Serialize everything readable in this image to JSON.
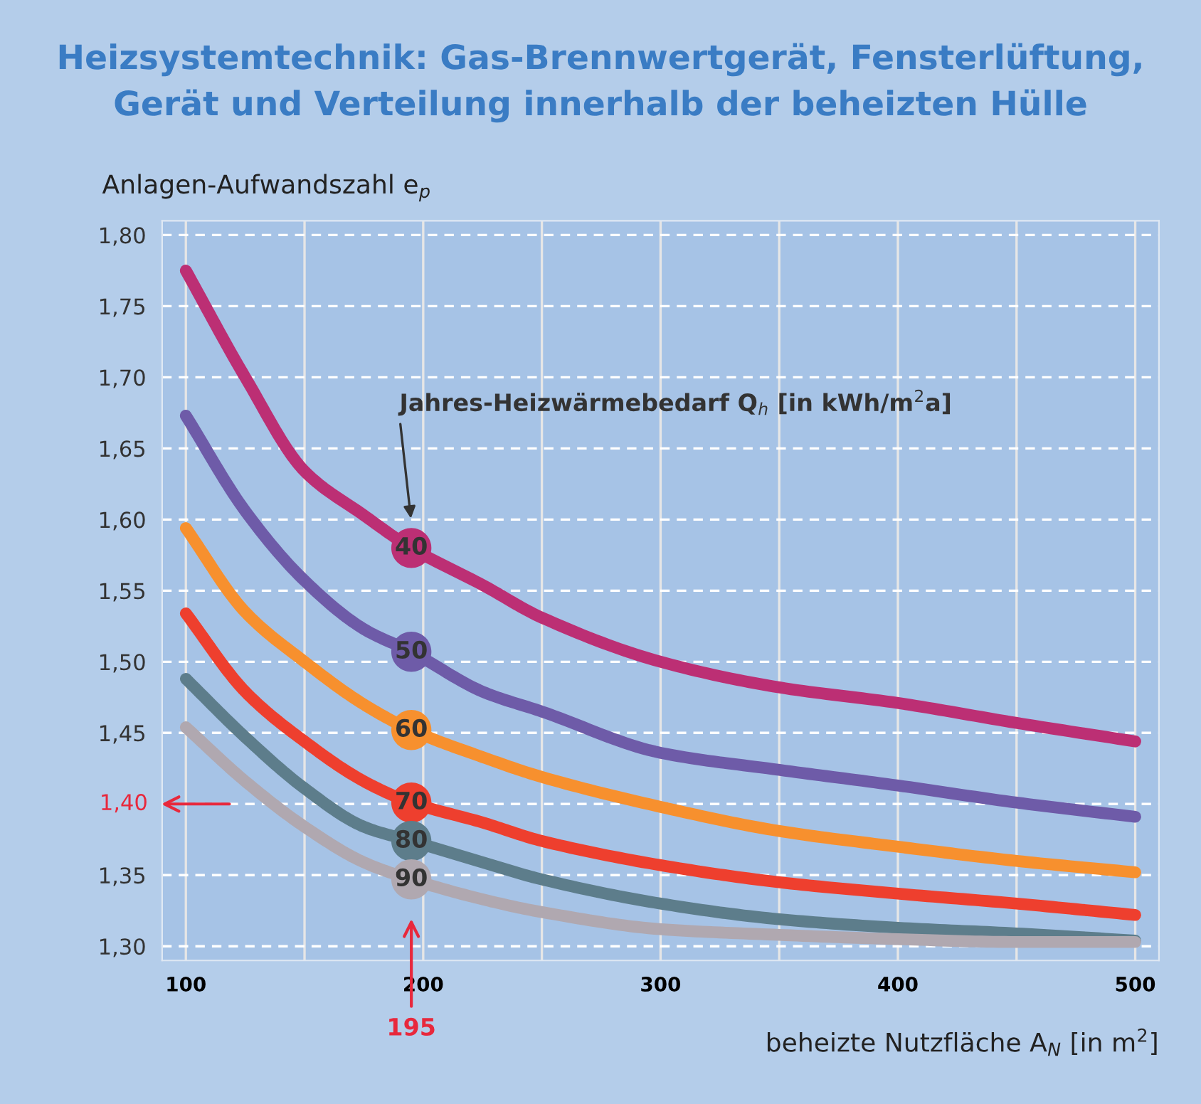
{
  "chart_data": {
    "type": "line",
    "title": "Heizsystemtechnik: Gas-Brennwertgerät, Fensterlüftung,\nGerät und Verteilung innerhalb der beheizten Hülle",
    "ylabel": "Anlagen-Aufwandszahl e$_{p}$",
    "xlabel": "beheizte Nutzfläche A$_{N}$ [in m$^{2}$]",
    "legend_title": "Jahres-Heizwärmebedarf Q$_{h}$ [in kWh/m$^{2}$a]",
    "x": [
      100,
      125,
      150,
      175,
      195,
      225,
      250,
      300,
      350,
      400,
      450,
      500
    ],
    "series": [
      {
        "name": "40",
        "color": "#bc2f74",
        "values": [
          1.775,
          1.7,
          1.634,
          1.603,
          1.58,
          1.554,
          1.531,
          1.5,
          1.482,
          1.471,
          1.457,
          1.444
        ]
      },
      {
        "name": "50",
        "color": "#6e5ba8",
        "values": [
          1.673,
          1.606,
          1.557,
          1.523,
          1.507,
          1.479,
          1.465,
          1.436,
          1.424,
          1.413,
          1.401,
          1.391
        ]
      },
      {
        "name": "60",
        "color": "#f7902e",
        "values": [
          1.594,
          1.535,
          1.5,
          1.47,
          1.452,
          1.433,
          1.419,
          1.398,
          1.381,
          1.37,
          1.36,
          1.352
        ]
      },
      {
        "name": "70",
        "color": "#ee3f2e",
        "values": [
          1.534,
          1.479,
          1.444,
          1.416,
          1.401,
          1.387,
          1.374,
          1.357,
          1.345,
          1.337,
          1.33,
          1.322
        ]
      },
      {
        "name": "80",
        "color": "#5d7d8b",
        "values": [
          1.488,
          1.447,
          1.411,
          1.384,
          1.374,
          1.359,
          1.347,
          1.33,
          1.319,
          1.313,
          1.309,
          1.304
        ]
      },
      {
        "name": "90",
        "color": "#b0a8b0",
        "values": [
          1.454,
          1.416,
          1.384,
          1.359,
          1.347,
          1.333,
          1.324,
          1.312,
          1.308,
          1.305,
          1.303,
          1.303
        ]
      }
    ],
    "xlim": [
      90,
      510
    ],
    "ylim": [
      1.29,
      1.81
    ],
    "xticks": [
      100,
      {
        "value": 150,
        "label": null
      },
      200,
      {
        "value": 250,
        "label": null
      },
      300,
      {
        "value": 350,
        "label": null
      },
      400,
      {
        "value": 450,
        "label": null
      },
      500
    ],
    "yticks": [
      {
        "value": 1.3,
        "label": "1,30"
      },
      {
        "value": 1.35,
        "label": "1,35"
      },
      {
        "value": 1.4,
        "label": null
      },
      {
        "value": 1.45,
        "label": "1,45"
      },
      {
        "value": 1.5,
        "label": "1,50"
      },
      {
        "value": 1.55,
        "label": "1,55"
      },
      {
        "value": 1.6,
        "label": "1,60"
      },
      {
        "value": 1.65,
        "label": "1,65"
      },
      {
        "value": 1.7,
        "label": "1,70"
      },
      {
        "value": 1.75,
        "label": "1,75"
      },
      {
        "value": 1.8,
        "label": "1,80"
      }
    ],
    "annotations": [
      "1,40",
      "195"
    ],
    "grid": true,
    "line_style": "solid",
    "marker": "none",
    "legend": false
  }
}
